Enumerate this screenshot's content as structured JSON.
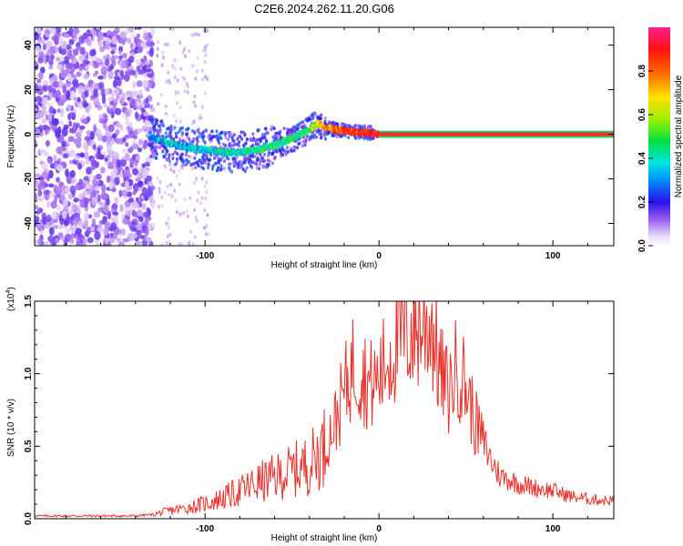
{
  "title": "C2E6.2024.262.11.20.G06",
  "chart_data": [
    {
      "type": "heatmap",
      "xlabel": "Height of straight line (km)",
      "ylabel": "Frequency (Hz)",
      "xlim": [
        -198,
        135
      ],
      "ylim": [
        -50,
        48
      ],
      "xticks": [
        "-100",
        "0",
        "100"
      ],
      "xtick_values": [
        -100,
        0,
        100
      ],
      "yticks": [
        "-40",
        "-20",
        "0",
        "20",
        "40"
      ],
      "ytick_values": [
        -40,
        -20,
        0,
        20,
        40
      ],
      "colorbar": {
        "label": "Normalized spectral amplitude",
        "ticks": [
          "0.0",
          "0.2",
          "0.4",
          "0.6",
          "0.8"
        ],
        "tick_values": [
          0.0,
          0.2,
          0.4,
          0.6,
          0.8
        ],
        "range": [
          0,
          1
        ]
      },
      "trace": {
        "x": [
          -132,
          -120,
          -110,
          -100,
          -90,
          -80,
          -70,
          -60,
          -50,
          -45,
          -40,
          -37,
          -35,
          -30,
          -25,
          -20,
          -15,
          -10,
          -5,
          0,
          10,
          30,
          60,
          100,
          135
        ],
        "y": [
          -1,
          -4,
          -6,
          -7,
          -8,
          -8,
          -7,
          -5,
          -2,
          0,
          2,
          4,
          5,
          3,
          2,
          1.5,
          1,
          1,
          0.5,
          0,
          0,
          0,
          0,
          0,
          0
        ],
        "amplitude": [
          0.3,
          0.35,
          0.35,
          0.35,
          0.4,
          0.4,
          0.45,
          0.45,
          0.45,
          0.45,
          0.5,
          0.6,
          0.65,
          0.75,
          0.8,
          0.85,
          0.85,
          0.85,
          0.9,
          0.95,
          0.97,
          0.98,
          0.98,
          0.98,
          0.98
        ]
      },
      "noise_region_x": [
        -198,
        -130
      ]
    },
    {
      "type": "line",
      "xlabel": "Height of straight line (km)",
      "ylabel": "SNR (10 * v/v)",
      "y_multiplier": "(x10",
      "y_multiplier_exp": "4",
      "y_multiplier_close": ")",
      "xlim": [
        -198,
        135
      ],
      "ylim": [
        0,
        1.5
      ],
      "xticks": [
        "-100",
        "0",
        "100"
      ],
      "xtick_values": [
        -100,
        0,
        100
      ],
      "yticks": [
        "0.0",
        "0.5",
        "1.0",
        "1.5"
      ],
      "ytick_values": [
        0,
        0.5,
        1.0,
        1.5
      ],
      "line_color": "#e8322c",
      "series": [
        {
          "x": [
            -198,
            -180,
            -160,
            -140,
            -130,
            -120,
            -110,
            -100,
            -90,
            -80,
            -70,
            -60,
            -50,
            -40,
            -30,
            -25,
            -20,
            -15,
            -10,
            -5,
            0,
            5,
            10,
            15,
            20,
            25,
            30,
            35,
            40,
            45,
            50,
            55,
            60,
            65,
            70,
            75,
            80,
            90,
            100,
            110,
            120,
            130,
            135
          ],
          "values": [
            0.02,
            0.02,
            0.02,
            0.02,
            0.03,
            0.06,
            0.08,
            0.11,
            0.15,
            0.2,
            0.26,
            0.3,
            0.35,
            0.4,
            0.55,
            0.7,
            0.9,
            1.1,
            1.05,
            0.95,
            1.0,
            1.15,
            1.25,
            1.32,
            1.35,
            1.38,
            1.42,
            1.05,
            0.9,
            1.1,
            0.95,
            0.7,
            0.55,
            0.4,
            0.3,
            0.28,
            0.25,
            0.22,
            0.2,
            0.16,
            0.14,
            0.13,
            0.13
          ]
        }
      ]
    }
  ]
}
